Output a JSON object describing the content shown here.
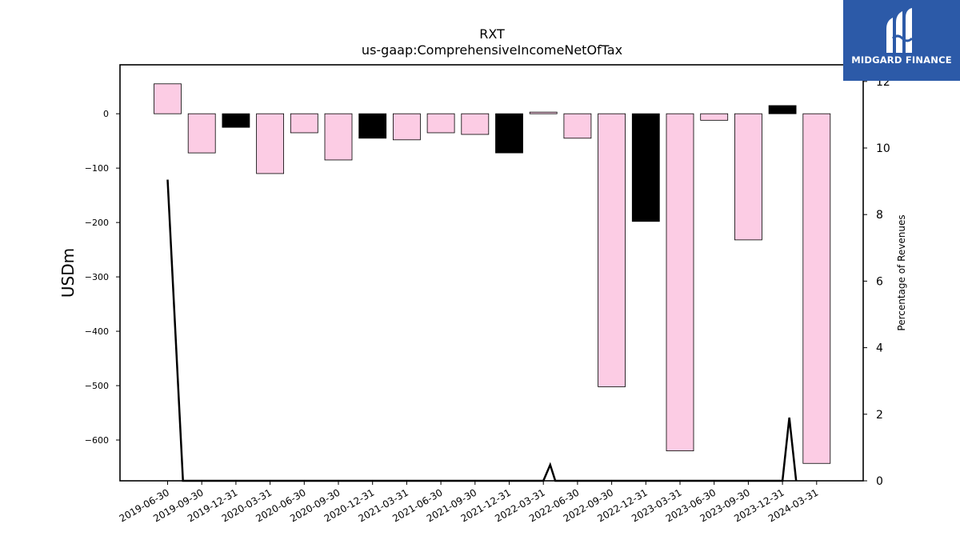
{
  "chart_data": {
    "type": "bar",
    "title": "RXT",
    "subtitle": "us-gaap:ComprehensiveIncomeNetOfTax",
    "ylabel": "USDm",
    "y2label": "Percentage of Revenues",
    "categories": [
      "2019-06-30",
      "2019-09-30",
      "2019-12-31",
      "2020-03-31",
      "2020-06-30",
      "2020-09-30",
      "2020-12-31",
      "2021-03-31",
      "2021-06-30",
      "2021-09-30",
      "2021-12-31",
      "2022-03-31",
      "2022-06-30",
      "2022-09-30",
      "2022-12-31",
      "2023-03-31",
      "2023-06-30",
      "2023-09-30",
      "2023-12-31",
      "2024-03-31"
    ],
    "values": [
      55,
      -72,
      -25,
      -110,
      -35,
      -85,
      -45,
      -48,
      -35,
      -38,
      -72,
      3,
      -45,
      -502,
      -198,
      -620,
      -12,
      -232,
      15,
      -643
    ],
    "bar_colors": [
      "#fccce4",
      "#fccce4",
      "#000000",
      "#fccce4",
      "#fccce4",
      "#fccce4",
      "#000000",
      "#fccce4",
      "#fccce4",
      "#fccce4",
      "#000000",
      "#fccce4",
      "#fccce4",
      "#fccce4",
      "#000000",
      "#fccce4",
      "#fccce4",
      "#fccce4",
      "#000000",
      "#fccce4"
    ],
    "ylim": [
      -675,
      90
    ],
    "yticks": [
      0,
      -100,
      -200,
      -300,
      -400,
      -500,
      -600
    ],
    "ytick_labels": [
      "0",
      "−100",
      "−200",
      "−300",
      "−400",
      "−500",
      "−600"
    ],
    "y2lim": [
      0,
      12.5
    ],
    "y2ticks": [
      0,
      2,
      4,
      6,
      8,
      10,
      12
    ],
    "y2tick_labels": [
      "0",
      "2",
      "4",
      "6",
      "8",
      "10",
      "12"
    ],
    "line_series": {
      "x": [
        0,
        0.45,
        11,
        11.2,
        11.35,
        18,
        18.2,
        18.4
      ],
      "y": [
        9.05,
        0,
        0,
        0.48,
        0,
        0,
        1.9,
        0
      ]
    },
    "grid": false,
    "legend": "none"
  },
  "logo": {
    "text": "MIDGARD FINANCE",
    "icon": "midgard-logo-icon"
  }
}
